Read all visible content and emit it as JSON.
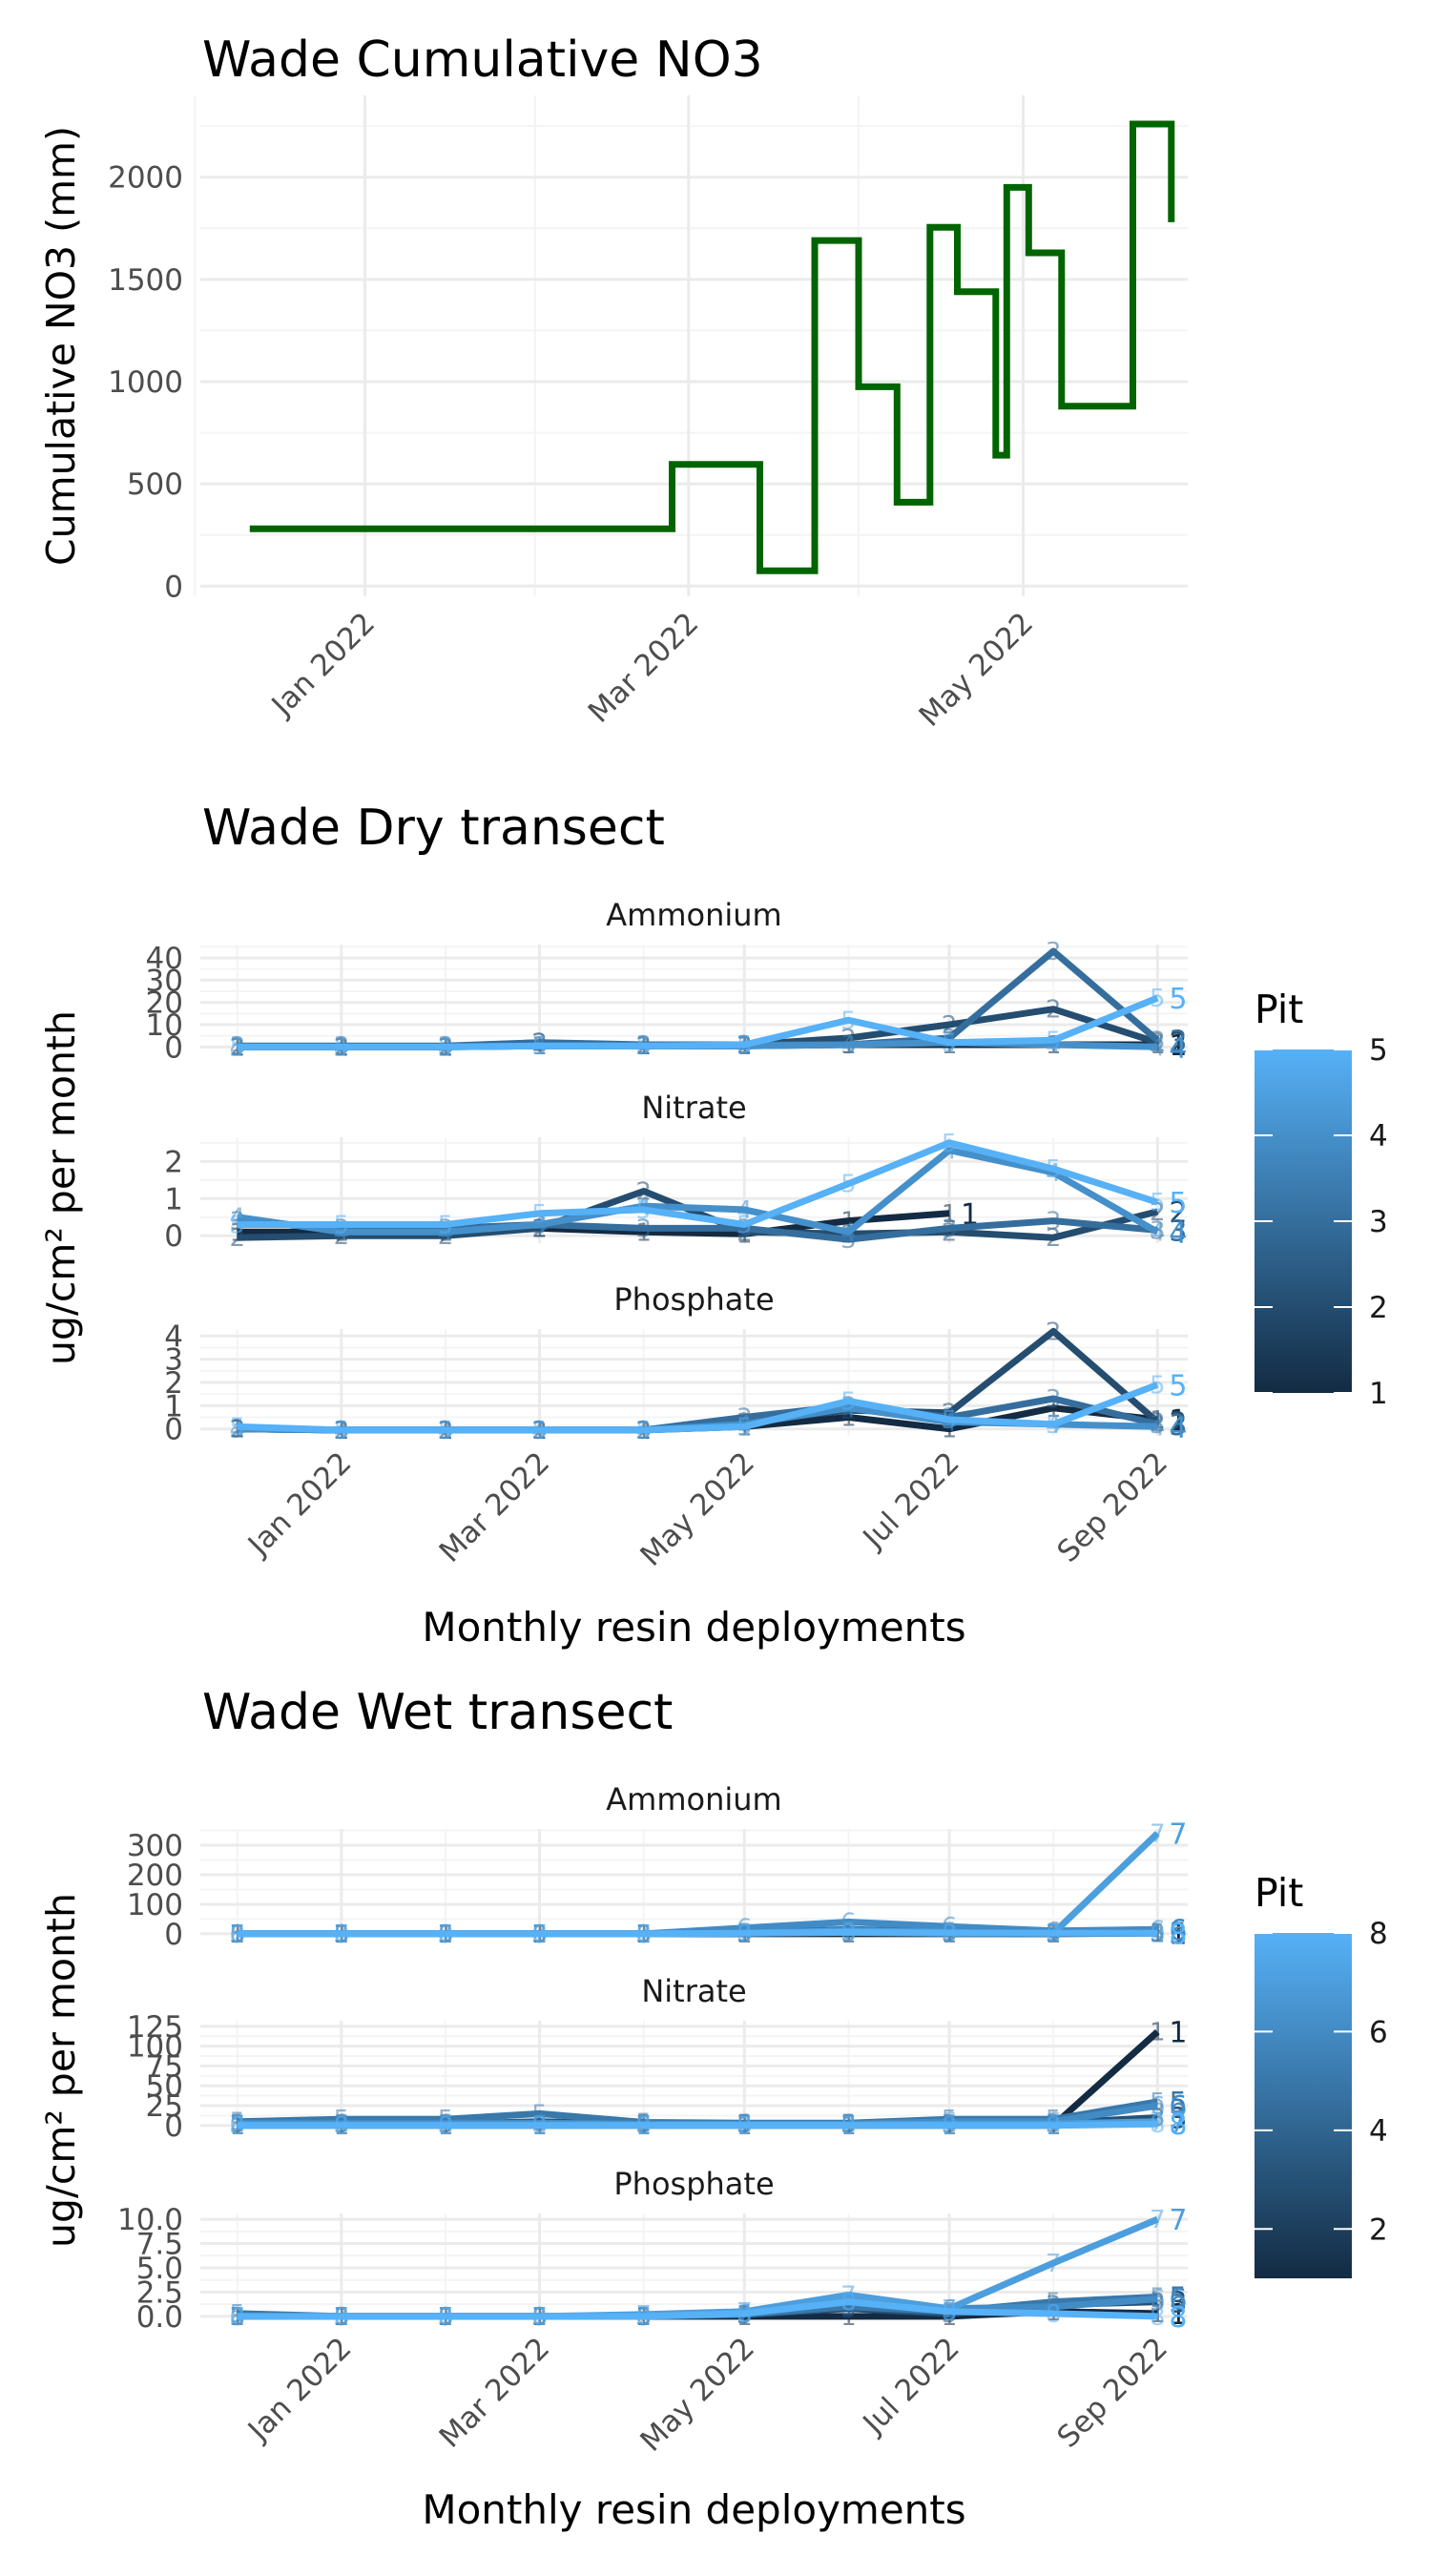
{
  "chart_data": [
    {
      "type": "line",
      "title": "Wade Cumulative NO3",
      "ylabel": "Cumulative NO3 (mm)",
      "xlabel": "",
      "ylim": [
        -50,
        2400
      ],
      "xlim": [
        "2021-12-02",
        "2022-05-31"
      ],
      "x_ticks": [
        {
          "date": "2022-01-01",
          "label": "Jan 2022"
        },
        {
          "date": "2022-03-01",
          "label": "Mar 2022"
        },
        {
          "date": "2022-05-01",
          "label": "May 2022"
        }
      ],
      "y_ticks": [
        0,
        500,
        1000,
        1500,
        2000
      ],
      "line_color": "#006400",
      "step_points": [
        [
          "2021-12-11",
          280
        ],
        [
          "2022-02-26",
          280
        ],
        [
          "2022-02-26",
          595
        ],
        [
          "2022-03-14",
          595
        ],
        [
          "2022-03-14",
          75
        ],
        [
          "2022-03-24",
          75
        ],
        [
          "2022-03-24",
          1690
        ],
        [
          "2022-04-01",
          1690
        ],
        [
          "2022-04-01",
          975
        ],
        [
          "2022-04-08",
          975
        ],
        [
          "2022-04-08",
          410
        ],
        [
          "2022-04-14",
          410
        ],
        [
          "2022-04-14",
          1755
        ],
        [
          "2022-04-19",
          1755
        ],
        [
          "2022-04-19",
          1440
        ],
        [
          "2022-04-26",
          1440
        ],
        [
          "2022-04-26",
          640
        ],
        [
          "2022-04-28",
          640
        ],
        [
          "2022-04-28",
          1950
        ],
        [
          "2022-05-02",
          1950
        ],
        [
          "2022-05-02",
          1630
        ],
        [
          "2022-05-08",
          1630
        ],
        [
          "2022-05-08",
          880
        ],
        [
          "2022-05-21",
          880
        ],
        [
          "2022-05-21",
          2260
        ],
        [
          "2022-05-28",
          2260
        ],
        [
          "2022-05-28",
          1780
        ]
      ]
    },
    {
      "type": "line",
      "title": "Wade Dry transect",
      "xlabel": "Monthly resin deployments",
      "ylabel": "ug/cm² per month",
      "x_ticks": [
        {
          "date": "2022-01-01",
          "label": "Jan 2022"
        },
        {
          "date": "2022-03-01",
          "label": "Mar 2022"
        },
        {
          "date": "2022-05-01",
          "label": "May 2022"
        },
        {
          "date": "2022-07-01",
          "label": "Jul 2022"
        },
        {
          "date": "2022-09-01",
          "label": "Sep 2022"
        }
      ],
      "xlim": [
        "2021-11-20",
        "2022-09-10"
      ],
      "x": [
        "2021-12-01",
        "2022-01-01",
        "2022-02-01",
        "2022-03-01",
        "2022-04-01",
        "2022-05-01",
        "2022-06-01",
        "2022-07-01",
        "2022-08-01",
        "2022-09-01"
      ],
      "legend": {
        "title": "Pit",
        "min": 1,
        "max": 5,
        "ticks": [
          1,
          2,
          3,
          4,
          5
        ],
        "position": "right"
      },
      "panels": [
        {
          "name": "Ammonium",
          "ylim": [
            -2,
            46
          ],
          "y_ticks": [
            0,
            10,
            20,
            30,
            40
          ],
          "series": [
            {
              "pit": 1,
              "values": [
                0,
                0,
                0,
                0.5,
                0.5,
                0.5,
                1,
                1,
                1,
                1
              ]
            },
            {
              "pit": 2,
              "values": [
                0,
                0,
                0,
                2,
                0.5,
                1,
                4,
                10,
                17,
                2
              ]
            },
            {
              "pit": 3,
              "values": [
                0.5,
                0.5,
                0.5,
                2,
                1,
                1,
                1,
                4,
                43,
                3
              ]
            },
            {
              "pit": 4,
              "values": [
                0,
                0,
                0,
                0.5,
                0.5,
                0.5,
                1,
                2,
                1,
                0
              ]
            },
            {
              "pit": 5,
              "values": [
                0,
                0,
                0,
                0.5,
                0.5,
                1,
                12,
                2,
                3,
                22
              ]
            }
          ]
        },
        {
          "name": "Nitrate",
          "ylim": [
            -0.2,
            2.65
          ],
          "y_ticks": [
            0,
            1,
            2
          ],
          "series": [
            {
              "pit": 1,
              "values": [
                0.1,
                0.1,
                0.1,
                0.2,
                0.1,
                0.05,
                0.4,
                0.6,
                null,
                null
              ]
            },
            {
              "pit": 2,
              "values": [
                -0.05,
                0,
                0,
                0.2,
                1.2,
                0.1,
                0.05,
                0.1,
                -0.05,
                0.65
              ]
            },
            {
              "pit": 3,
              "values": [
                0.4,
                0.2,
                0.2,
                0.3,
                0.2,
                0.2,
                -0.1,
                0.2,
                0.4,
                0.15
              ]
            },
            {
              "pit": 4,
              "values": [
                0.5,
                0.1,
                0.1,
                0.3,
                0.8,
                0.7,
                0.1,
                2.3,
                1.7,
                0.1
              ]
            },
            {
              "pit": 5,
              "values": [
                0.3,
                0.3,
                0.3,
                0.6,
                0.7,
                0.3,
                1.4,
                2.5,
                1.8,
                0.9
              ]
            }
          ]
        },
        {
          "name": "Phosphate",
          "ylim": [
            -0.3,
            4.3
          ],
          "y_ticks": [
            0,
            1,
            2,
            3,
            4
          ],
          "series": [
            {
              "pit": 1,
              "values": [
                0,
                -0.05,
                -0.05,
                -0.05,
                -0.05,
                0.1,
                0.5,
                0,
                0.9,
                0.4
              ]
            },
            {
              "pit": 2,
              "values": [
                0,
                -0.05,
                -0.05,
                -0.05,
                -0.05,
                0.3,
                0.8,
                0.7,
                4.2,
                0.3
              ]
            },
            {
              "pit": 3,
              "values": [
                0,
                -0.05,
                -0.05,
                -0.05,
                -0.05,
                0.5,
                1,
                0.5,
                1.3,
                0.2
              ]
            },
            {
              "pit": 4,
              "values": [
                0,
                -0.05,
                -0.05,
                -0.05,
                -0.05,
                0.2,
                0.9,
                0.3,
                0.2,
                0.1
              ]
            },
            {
              "pit": 5,
              "values": [
                0.1,
                -0.05,
                -0.05,
                -0.05,
                -0.05,
                0.1,
                1.2,
                0.4,
                0.2,
                1.9
              ]
            }
          ]
        }
      ]
    },
    {
      "type": "line",
      "title": "Wade Wet transect",
      "xlabel": "Monthly resin deployments",
      "ylabel": "ug/cm² per month",
      "x_ticks": [
        {
          "date": "2022-01-01",
          "label": "Jan 2022"
        },
        {
          "date": "2022-03-01",
          "label": "Mar 2022"
        },
        {
          "date": "2022-05-01",
          "label": "May 2022"
        },
        {
          "date": "2022-07-01",
          "label": "Jul 2022"
        },
        {
          "date": "2022-09-01",
          "label": "Sep 2022"
        }
      ],
      "xlim": [
        "2021-11-20",
        "2022-09-10"
      ],
      "x": [
        "2021-12-01",
        "2022-01-01",
        "2022-02-01",
        "2022-03-01",
        "2022-04-01",
        "2022-05-01",
        "2022-06-01",
        "2022-07-01",
        "2022-08-01",
        "2022-09-01"
      ],
      "legend": {
        "title": "Pit",
        "min": 1,
        "max": 8,
        "ticks": [
          2,
          4,
          6,
          8
        ],
        "position": "right"
      },
      "panels": [
        {
          "name": "Ammonium",
          "ylim": [
            -10,
            355
          ],
          "y_ticks": [
            0,
            100,
            200,
            300
          ],
          "series": [
            {
              "pit": 1,
              "values": [
                0,
                0,
                0,
                0,
                0,
                0,
                0,
                0,
                0,
                2
              ]
            },
            {
              "pit": 3,
              "values": [
                0,
                0,
                0,
                0,
                0,
                2,
                5,
                3,
                2,
                3
              ]
            },
            {
              "pit": 5,
              "values": [
                0,
                0,
                0,
                0,
                0,
                5,
                15,
                8,
                5,
                5
              ]
            },
            {
              "pit": 6,
              "values": [
                0,
                0,
                0,
                0,
                0,
                20,
                40,
                25,
                10,
                15
              ]
            },
            {
              "pit": 7,
              "values": [
                0,
                0,
                0,
                0,
                0,
                2,
                10,
                5,
                2,
                340
              ]
            },
            {
              "pit": 8,
              "values": [
                0,
                0,
                0,
                0,
                0,
                2,
                5,
                2,
                2,
                2
              ]
            }
          ]
        },
        {
          "name": "Nitrate",
          "ylim": [
            -5,
            132
          ],
          "y_ticks": [
            0,
            25,
            50,
            75,
            100,
            125
          ],
          "series": [
            {
              "pit": 1,
              "values": [
                0,
                0,
                0,
                0,
                0,
                0,
                0,
                0,
                0,
                118
              ]
            },
            {
              "pit": 3,
              "values": [
                2,
                2,
                2,
                5,
                2,
                2,
                2,
                2,
                3,
                10
              ]
            },
            {
              "pit": 5,
              "values": [
                5,
                8,
                8,
                15,
                4,
                3,
                3,
                8,
                8,
                30
              ]
            },
            {
              "pit": 6,
              "values": [
                3,
                3,
                3,
                3,
                2,
                2,
                2,
                5,
                5,
                25
              ]
            },
            {
              "pit": 7,
              "values": [
                1,
                1,
                1,
                1,
                1,
                1,
                1,
                2,
                2,
                5
              ]
            },
            {
              "pit": 8,
              "values": [
                0,
                0,
                0,
                0,
                0,
                0,
                0,
                0,
                0,
                2
              ]
            }
          ]
        },
        {
          "name": "Phosphate",
          "ylim": [
            -0.5,
            10.6
          ],
          "y_ticks": [
            0,
            2.5,
            5,
            7.5,
            10
          ],
          "y_tick_labels": [
            "0.0",
            "2.5",
            "5.0",
            "7.5",
            "10.0"
          ],
          "series": [
            {
              "pit": 1,
              "values": [
                0,
                0,
                0,
                0,
                0,
                0,
                0,
                0,
                0.5,
                0.3
              ]
            },
            {
              "pit": 3,
              "values": [
                0,
                0,
                0,
                0,
                0,
                0.2,
                0.8,
                0.3,
                1.2,
                1.5
              ]
            },
            {
              "pit": 5,
              "values": [
                0.3,
                0,
                0,
                0,
                0,
                0.2,
                1,
                0.5,
                1.5,
                2
              ]
            },
            {
              "pit": 6,
              "values": [
                0,
                0,
                0,
                0,
                0,
                0.3,
                1.5,
                0.8,
                1,
                1.8
              ]
            },
            {
              "pit": 7,
              "values": [
                0,
                0,
                0,
                0,
                0.2,
                0.5,
                2.2,
                0.8,
                5.5,
                10
              ]
            },
            {
              "pit": 8,
              "values": [
                0,
                0,
                0,
                0,
                0,
                0.3,
                1.5,
                0.5,
                0.3,
                0
              ]
            }
          ]
        }
      ]
    }
  ]
}
